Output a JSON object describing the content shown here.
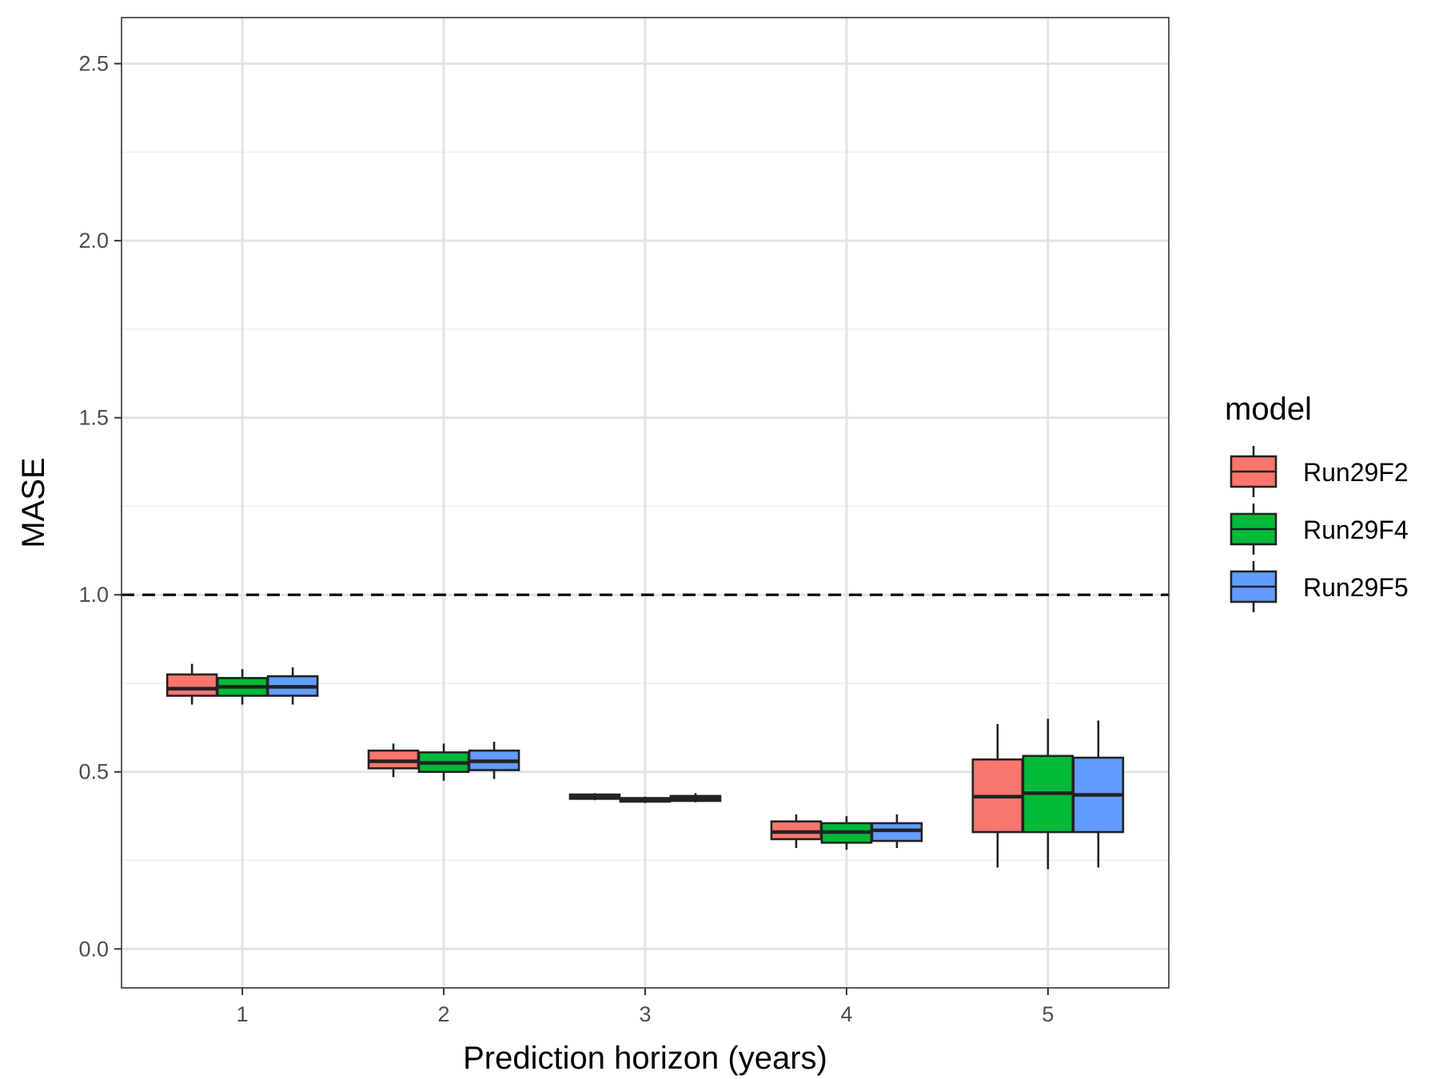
{
  "chart_data": {
    "type": "boxplot",
    "xlabel": "Prediction horizon (years)",
    "ylabel": "MASE",
    "categories": [
      "1",
      "2",
      "3",
      "4",
      "5"
    ],
    "y_ticks": [
      "0.0",
      "0.5",
      "1.0",
      "1.5",
      "2.0",
      "2.5"
    ],
    "ylim": [
      -0.11,
      2.63
    ],
    "grid": true,
    "reference_line": {
      "y": 1.0,
      "style": "dashed"
    },
    "legend": {
      "title": "model",
      "position": "right"
    },
    "series": [
      {
        "name": "Run29F2",
        "color": "#F8766D",
        "boxes": [
          {
            "category": "1",
            "min": 0.69,
            "q1": 0.715,
            "median": 0.735,
            "q3": 0.775,
            "max": 0.805
          },
          {
            "category": "2",
            "min": 0.485,
            "q1": 0.51,
            "median": 0.53,
            "q3": 0.56,
            "max": 0.58
          },
          {
            "category": "3",
            "min": 0.42,
            "q1": 0.424,
            "median": 0.428,
            "q3": 0.436,
            "max": 0.44
          },
          {
            "category": "4",
            "min": 0.285,
            "q1": 0.31,
            "median": 0.33,
            "q3": 0.36,
            "max": 0.38
          },
          {
            "category": "5",
            "min": 0.23,
            "q1": 0.33,
            "median": 0.43,
            "q3": 0.535,
            "max": 0.635
          }
        ]
      },
      {
        "name": "Run29F4",
        "color": "#00BA38",
        "boxes": [
          {
            "category": "1",
            "min": 0.69,
            "q1": 0.715,
            "median": 0.74,
            "q3": 0.765,
            "max": 0.79
          },
          {
            "category": "2",
            "min": 0.475,
            "q1": 0.5,
            "median": 0.525,
            "q3": 0.555,
            "max": 0.58
          },
          {
            "category": "3",
            "min": 0.412,
            "q1": 0.416,
            "median": 0.42,
            "q3": 0.426,
            "max": 0.43
          },
          {
            "category": "4",
            "min": 0.28,
            "q1": 0.3,
            "median": 0.33,
            "q3": 0.355,
            "max": 0.375
          },
          {
            "category": "5",
            "min": 0.225,
            "q1": 0.33,
            "median": 0.44,
            "q3": 0.545,
            "max": 0.65
          }
        ]
      },
      {
        "name": "Run29F5",
        "color": "#619CFF",
        "boxes": [
          {
            "category": "1",
            "min": 0.69,
            "q1": 0.715,
            "median": 0.74,
            "q3": 0.77,
            "max": 0.795
          },
          {
            "category": "2",
            "min": 0.48,
            "q1": 0.505,
            "median": 0.53,
            "q3": 0.56,
            "max": 0.585
          },
          {
            "category": "3",
            "min": 0.414,
            "q1": 0.418,
            "median": 0.425,
            "q3": 0.432,
            "max": 0.44
          },
          {
            "category": "4",
            "min": 0.285,
            "q1": 0.305,
            "median": 0.335,
            "q3": 0.355,
            "max": 0.38
          },
          {
            "category": "5",
            "min": 0.23,
            "q1": 0.33,
            "median": 0.435,
            "q3": 0.54,
            "max": 0.645
          }
        ]
      }
    ]
  }
}
